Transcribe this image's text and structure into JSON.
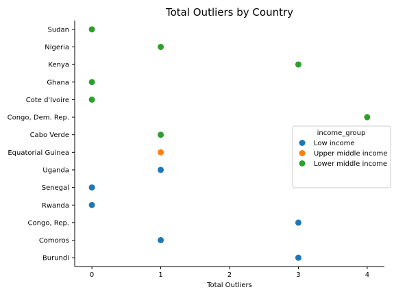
{
  "chart_data": {
    "type": "scatter",
    "title": "Total Outliers by Country",
    "xlabel": "Total Outliers",
    "ylabel": "",
    "xlim": [
      -0.25,
      4.25
    ],
    "xticks": [
      0,
      1,
      2,
      3,
      4
    ],
    "categories": [
      "Sudan",
      "Nigeria",
      "Kenya",
      "Ghana",
      "Cote d'Ivoire",
      "Congo, Dem. Rep.",
      "Cabo Verde",
      "Equatorial Guinea",
      "Uganda",
      "Senegal",
      "Rwanda",
      "Congo, Rep.",
      "Comoros",
      "Burundi"
    ],
    "grid": false,
    "legend": {
      "title": "income_group",
      "placement": "right"
    },
    "series": [
      {
        "name": "Low income",
        "color": "#1f77b4",
        "points": [
          {
            "category": "Uganda",
            "x": 1
          },
          {
            "category": "Senegal",
            "x": 0
          },
          {
            "category": "Rwanda",
            "x": 0
          },
          {
            "category": "Congo, Rep.",
            "x": 3
          },
          {
            "category": "Comoros",
            "x": 1
          },
          {
            "category": "Burundi",
            "x": 3
          }
        ]
      },
      {
        "name": "Upper middle income",
        "color": "#ff7f0e",
        "points": [
          {
            "category": "Equatorial Guinea",
            "x": 1
          }
        ]
      },
      {
        "name": "Lower middle income",
        "color": "#2ca02c",
        "points": [
          {
            "category": "Sudan",
            "x": 0
          },
          {
            "category": "Nigeria",
            "x": 1
          },
          {
            "category": "Kenya",
            "x": 3
          },
          {
            "category": "Ghana",
            "x": 0
          },
          {
            "category": "Cote d'Ivoire",
            "x": 0
          },
          {
            "category": "Congo, Dem. Rep.",
            "x": 4
          },
          {
            "category": "Cabo Verde",
            "x": 1
          }
        ]
      }
    ]
  }
}
